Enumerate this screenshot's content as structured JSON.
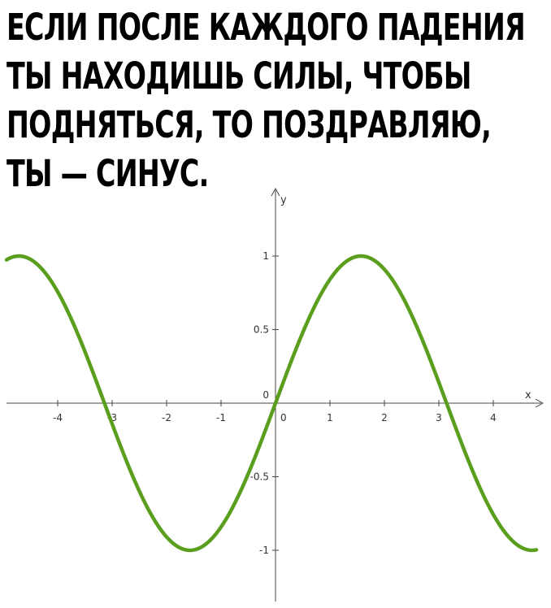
{
  "caption": {
    "lines": [
      "ЕСЛИ ПОСЛЕ КАЖДОГО ПАДЕНИЯ",
      "ТЫ НАХОДИШЬ СИЛЫ, ЧТОБЫ",
      "ПОДНЯТЬСЯ, ТО ПОЗДРАВЛЯЮ,",
      "ТЫ — СИНУС."
    ]
  },
  "chart_data": {
    "type": "line",
    "function": "sin(x)",
    "xlabel": "x",
    "ylabel": "y",
    "xlim": [
      -5.1,
      5.0
    ],
    "ylim": [
      -1.25,
      1.35
    ],
    "x_ticks": [
      -4,
      -3,
      -2,
      -1,
      0,
      1,
      2,
      3,
      4
    ],
    "x_tick_labels": [
      "-4",
      "-3",
      "-2",
      "-1",
      "0",
      "1",
      "2",
      "3",
      "4"
    ],
    "y_ticks": [
      1,
      0.5,
      0,
      -0.5,
      -1
    ],
    "y_tick_labels": [
      "1",
      "0.5",
      "0",
      "-0.5",
      "-1"
    ],
    "grid": false,
    "legend": "none",
    "series": [
      {
        "color": "#5a9e1e",
        "x": [
          -5.0,
          -4.5,
          -4.0,
          -3.5,
          -3.0,
          -2.5,
          -2.0,
          -1.5,
          -1.0,
          -0.5,
          0.0,
          0.5,
          1.0,
          1.5,
          2.0,
          2.5,
          3.0,
          3.5,
          4.0,
          4.5,
          5.0
        ],
        "y": [
          0.959,
          0.978,
          0.757,
          0.351,
          -0.141,
          -0.598,
          -0.909,
          -0.997,
          -0.841,
          -0.479,
          0.0,
          0.479,
          0.841,
          0.997,
          0.909,
          0.598,
          0.141,
          -0.351,
          -0.757,
          -0.978,
          -0.959
        ]
      }
    ]
  }
}
